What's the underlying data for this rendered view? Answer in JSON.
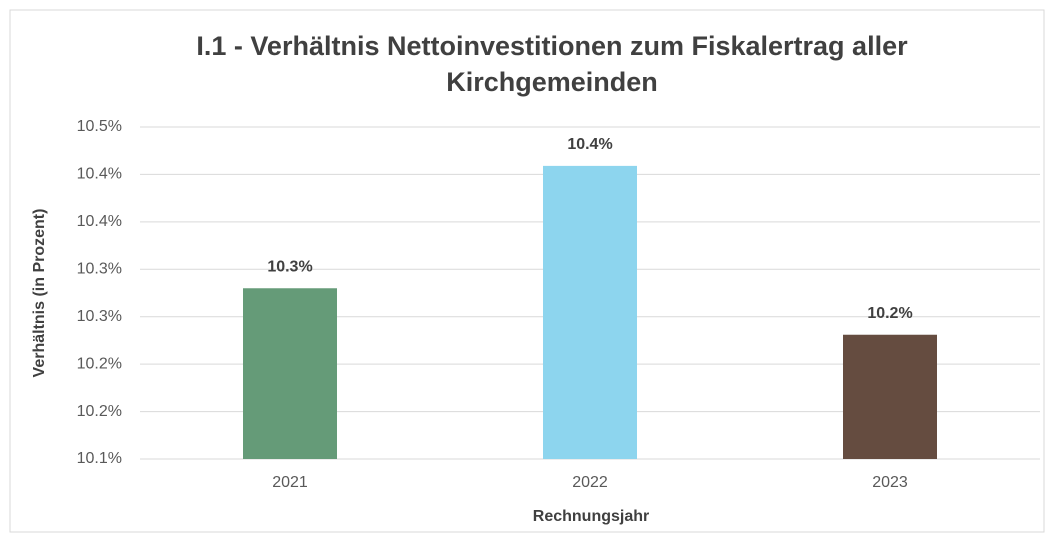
{
  "chart_data": {
    "type": "bar",
    "title": "I.1 - Verhältnis Nettoinvestitionen zum Fiskalertrag aller Kirchgemeinden",
    "x_label": "Rechnungsjahr",
    "y_label": "Verhältnis (in Prozent)",
    "categories": [
      "2021",
      "2022",
      "2023"
    ],
    "values": [
      10.28,
      10.409,
      10.231
    ],
    "value_labels": [
      "10.3%",
      "10.4%",
      "10.2%"
    ],
    "colors": [
      "#659b78",
      "#8dd5ee",
      "#654c40"
    ],
    "ylim": [
      10.1,
      10.45
    ],
    "yticks": [
      {
        "value": 10.1,
        "label": "10.1%"
      },
      {
        "value": 10.15,
        "label": "10.2%"
      },
      {
        "value": 10.2,
        "label": "10.2%"
      },
      {
        "value": 10.25,
        "label": "10.3%"
      },
      {
        "value": 10.3,
        "label": "10.3%"
      },
      {
        "value": 10.35,
        "label": "10.4%"
      },
      {
        "value": 10.4,
        "label": "10.4%"
      },
      {
        "value": 10.45,
        "label": "10.5%"
      }
    ],
    "grid": true
  }
}
